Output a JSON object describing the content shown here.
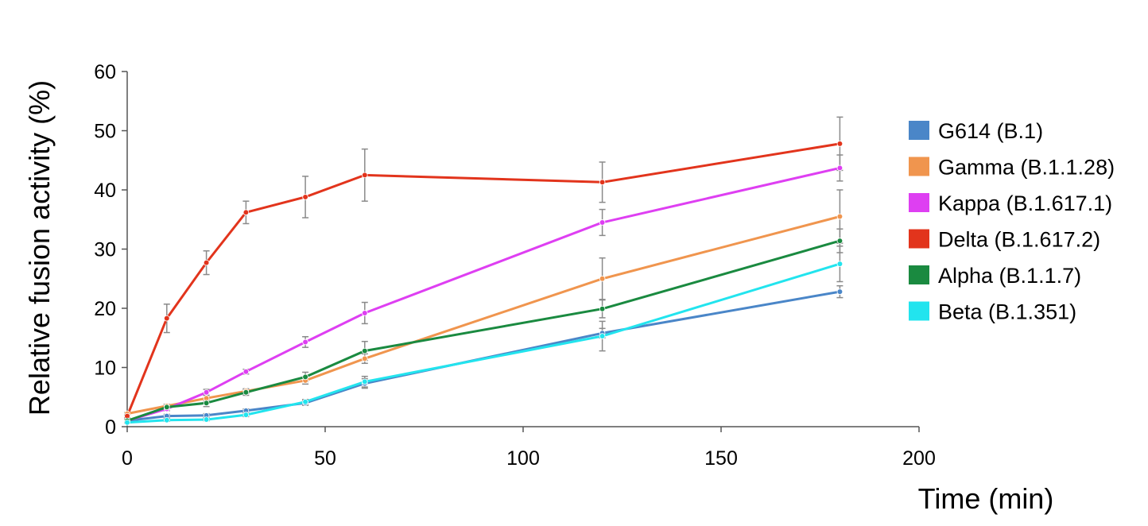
{
  "chart_data": {
    "type": "line",
    "title": "",
    "xlabel": "Time (min)",
    "ylabel": "Relative fusion activity (%)",
    "xlim": [
      0,
      200
    ],
    "ylim": [
      0,
      60
    ],
    "x_ticks": [
      0,
      50,
      100,
      150,
      200
    ],
    "y_ticks": [
      0,
      10,
      20,
      30,
      40,
      50,
      60
    ],
    "x_tick_labels": [
      "0",
      "50",
      "100",
      "150",
      "200"
    ],
    "y_tick_labels": [
      "0",
      "10",
      "20",
      "30",
      "40",
      "50",
      "60"
    ],
    "grid": false,
    "legend_position": "right",
    "x": [
      0,
      10,
      20,
      30,
      45,
      60,
      120,
      180
    ],
    "series": [
      {
        "name": "G614 (B.1)",
        "color": "#4a86c8",
        "values": [
          1.0,
          1.8,
          1.9,
          2.7,
          4.0,
          7.3,
          15.8,
          22.8
        ],
        "errors": [
          0.2,
          0.3,
          0.3,
          0.3,
          0.4,
          0.8,
          0.8,
          1.0
        ]
      },
      {
        "name": "Gamma (B.1.1.28)",
        "color": "#f0954e",
        "values": [
          2.2,
          3.5,
          4.8,
          6.0,
          7.8,
          11.5,
          25.0,
          35.5
        ],
        "errors": [
          0.2,
          0.3,
          0.5,
          0.4,
          0.6,
          0.8,
          3.5,
          4.5
        ]
      },
      {
        "name": "Kappa (B.1.617.1)",
        "color": "#de3ff2",
        "values": [
          1.0,
          3.0,
          5.8,
          9.3,
          14.3,
          19.2,
          34.5,
          43.7
        ],
        "errors": [
          0.2,
          0.3,
          0.5,
          0.4,
          0.9,
          1.8,
          2.2,
          2.2
        ]
      },
      {
        "name": "Delta (B.1.617.2)",
        "color": "#e2341c",
        "values": [
          1.8,
          18.3,
          27.7,
          36.2,
          38.8,
          42.5,
          41.3,
          47.8
        ],
        "errors": [
          0.3,
          2.4,
          2.0,
          1.9,
          3.5,
          4.4,
          3.4,
          4.5
        ]
      },
      {
        "name": "Alpha (B.1.1.7)",
        "color": "#1a8a40",
        "values": [
          1.0,
          3.3,
          4.0,
          5.8,
          8.4,
          12.8,
          19.9,
          31.4
        ],
        "errors": [
          0.2,
          0.3,
          0.6,
          0.5,
          0.8,
          1.6,
          1.5,
          2.0
        ]
      },
      {
        "name": "Beta (B.1.351)",
        "color": "#22e4ee",
        "values": [
          0.7,
          1.1,
          1.2,
          2.0,
          4.2,
          7.6,
          15.3,
          27.5
        ],
        "errors": [
          0.1,
          0.2,
          0.2,
          0.3,
          0.4,
          0.9,
          2.5,
          3.0
        ]
      }
    ]
  }
}
